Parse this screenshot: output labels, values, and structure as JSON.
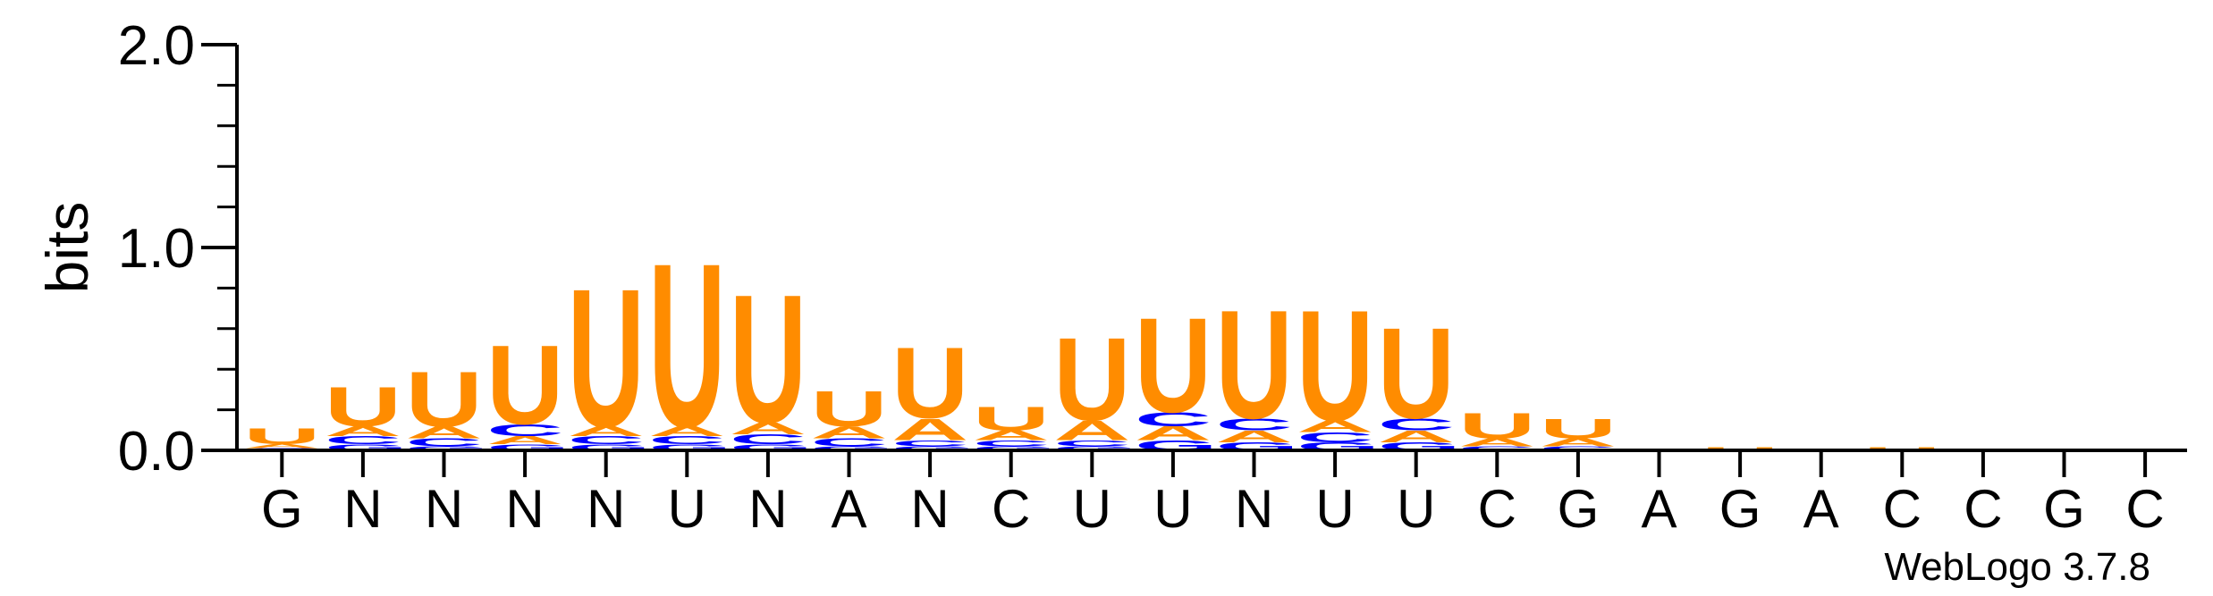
{
  "colors": {
    "U": "#ff8c00",
    "A": "#ff8c00",
    "C": "#0000ff",
    "G": "#0000ff",
    "axis": "#000000"
  },
  "credit": "WebLogo 3.7.8",
  "chart_data": {
    "type": "sequence-logo",
    "title": "",
    "xlabel": "",
    "ylabel": "bits",
    "ylim": [
      0,
      2.0
    ],
    "yticks": [
      "0.0",
      "1.0",
      "2.0"
    ],
    "grid": false,
    "categories": [
      "G",
      "N",
      "N",
      "N",
      "N",
      "U",
      "N",
      "A",
      "N",
      "C",
      "U",
      "U",
      "N",
      "U",
      "U",
      "C",
      "G",
      "A",
      "G",
      "A",
      "C",
      "C",
      "G",
      "C"
    ],
    "positions": [
      {
        "label": "G",
        "letters": [
          {
            "char": "U",
            "bits": 0.08
          },
          {
            "char": "A",
            "bits": 0.02
          },
          {
            "char": "C",
            "bits": 0.01
          }
        ]
      },
      {
        "label": "N",
        "letters": [
          {
            "char": "U",
            "bits": 0.2
          },
          {
            "char": "A",
            "bits": 0.05
          },
          {
            "char": "C",
            "bits": 0.04
          },
          {
            "char": "G",
            "bits": 0.03
          }
        ]
      },
      {
        "label": "N",
        "letters": [
          {
            "char": "U",
            "bits": 0.28
          },
          {
            "char": "A",
            "bits": 0.06
          },
          {
            "char": "C",
            "bits": 0.04
          },
          {
            "char": "G",
            "bits": 0.02
          }
        ]
      },
      {
        "label": "N",
        "letters": [
          {
            "char": "U",
            "bits": 0.4
          },
          {
            "char": "C",
            "bits": 0.06
          },
          {
            "char": "A",
            "bits": 0.04
          },
          {
            "char": "G",
            "bits": 0.03
          }
        ]
      },
      {
        "label": "N",
        "letters": [
          {
            "char": "U",
            "bits": 0.7
          },
          {
            "char": "A",
            "bits": 0.05
          },
          {
            "char": "C",
            "bits": 0.04
          },
          {
            "char": "G",
            "bits": 0.03
          }
        ]
      },
      {
        "label": "U",
        "letters": [
          {
            "char": "U",
            "bits": 0.83
          },
          {
            "char": "A",
            "bits": 0.05
          },
          {
            "char": "C",
            "bits": 0.04
          },
          {
            "char": "G",
            "bits": 0.03
          }
        ]
      },
      {
        "label": "N",
        "letters": [
          {
            "char": "U",
            "bits": 0.65
          },
          {
            "char": "A",
            "bits": 0.06
          },
          {
            "char": "C",
            "bits": 0.05
          },
          {
            "char": "G",
            "bits": 0.03
          }
        ]
      },
      {
        "label": "A",
        "letters": [
          {
            "char": "U",
            "bits": 0.18
          },
          {
            "char": "A",
            "bits": 0.06
          },
          {
            "char": "C",
            "bits": 0.04
          },
          {
            "char": "G",
            "bits": 0.02
          }
        ]
      },
      {
        "label": "N",
        "letters": [
          {
            "char": "U",
            "bits": 0.36
          },
          {
            "char": "A",
            "bits": 0.11
          },
          {
            "char": "C",
            "bits": 0.03
          },
          {
            "char": "G",
            "bits": 0.02
          }
        ]
      },
      {
        "label": "C",
        "letters": [
          {
            "char": "U",
            "bits": 0.12
          },
          {
            "char": "A",
            "bits": 0.05
          },
          {
            "char": "C",
            "bits": 0.03
          },
          {
            "char": "G",
            "bits": 0.02
          }
        ]
      },
      {
        "label": "U",
        "letters": [
          {
            "char": "U",
            "bits": 0.42
          },
          {
            "char": "A",
            "bits": 0.1
          },
          {
            "char": "C",
            "bits": 0.03
          },
          {
            "char": "G",
            "bits": 0.02
          }
        ]
      },
      {
        "label": "U",
        "letters": [
          {
            "char": "U",
            "bits": 0.48
          },
          {
            "char": "A",
            "bits": 0.07
          },
          {
            "char": "C",
            "bits": 0.07
          },
          {
            "char": "G",
            "bits": 0.05
          }
        ]
      },
      {
        "label": "N",
        "letters": [
          {
            "char": "U",
            "bits": 0.55
          },
          {
            "char": "A",
            "bits": 0.06
          },
          {
            "char": "C",
            "bits": 0.06
          },
          {
            "char": "G",
            "bits": 0.04
          }
        ]
      },
      {
        "label": "U",
        "letters": [
          {
            "char": "U",
            "bits": 0.56
          },
          {
            "char": "A",
            "bits": 0.06
          },
          {
            "char": "C",
            "bits": 0.05
          },
          {
            "char": "G",
            "bits": 0.04
          }
        ]
      },
      {
        "label": "U",
        "letters": [
          {
            "char": "U",
            "bits": 0.46
          },
          {
            "char": "A",
            "bits": 0.06
          },
          {
            "char": "C",
            "bits": 0.06
          },
          {
            "char": "G",
            "bits": 0.04
          }
        ]
      },
      {
        "label": "C",
        "letters": [
          {
            "char": "U",
            "bits": 0.13
          },
          {
            "char": "A",
            "bits": 0.04
          },
          {
            "char": "C",
            "bits": 0.02
          }
        ]
      },
      {
        "label": "G",
        "letters": [
          {
            "char": "U",
            "bits": 0.1
          },
          {
            "char": "A",
            "bits": 0.04
          },
          {
            "char": "C",
            "bits": 0.02
          }
        ]
      },
      {
        "label": "A",
        "letters": [
          {
            "char": "U",
            "bits": 0.005
          }
        ]
      },
      {
        "label": "G",
        "letters": [
          {
            "char": "U",
            "bits": 0.01
          },
          {
            "char": "A",
            "bits": 0.005
          }
        ]
      },
      {
        "label": "A",
        "letters": []
      },
      {
        "label": "C",
        "letters": [
          {
            "char": "U",
            "bits": 0.01
          },
          {
            "char": "A",
            "bits": 0.005
          }
        ]
      },
      {
        "label": "C",
        "letters": []
      },
      {
        "label": "G",
        "letters": []
      },
      {
        "label": "C",
        "letters": []
      }
    ]
  }
}
